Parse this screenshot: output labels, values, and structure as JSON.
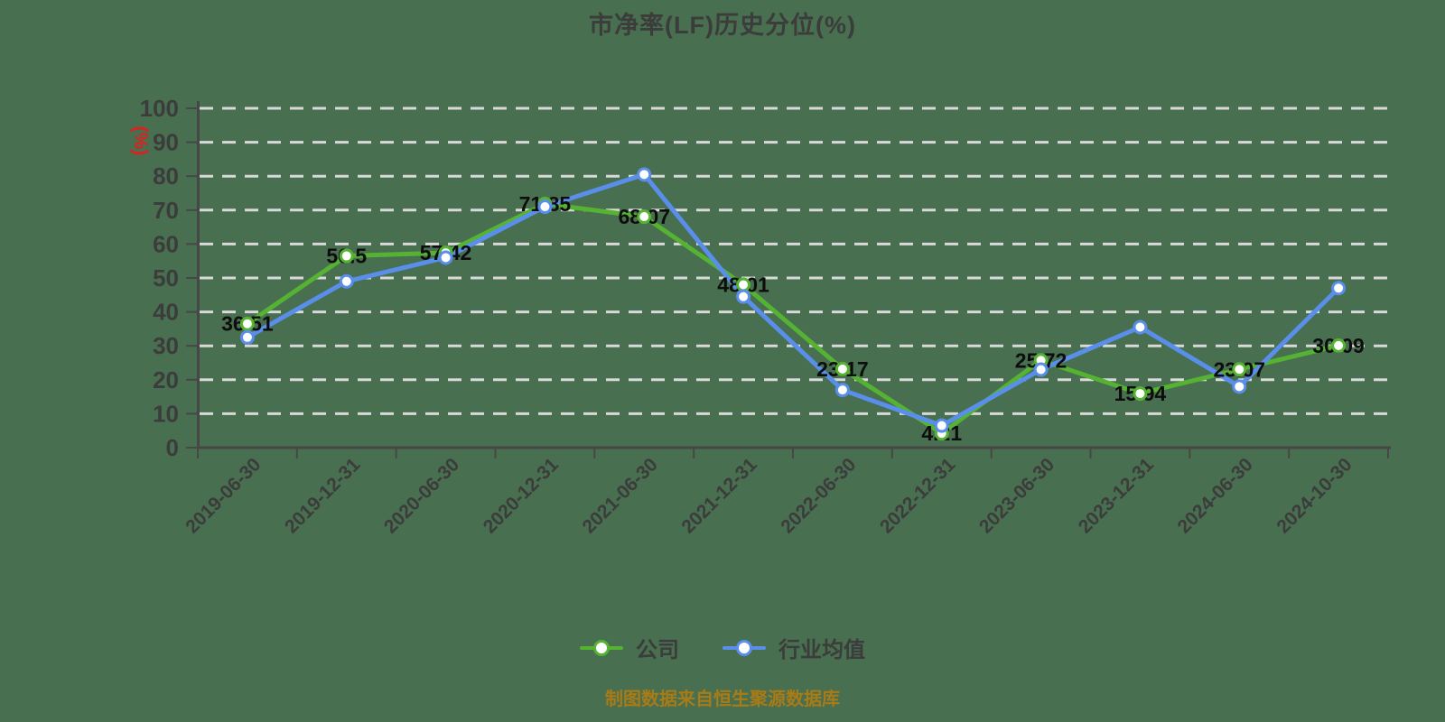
{
  "chart": {
    "title": "市净率(LF)历史分位(%)",
    "y_axis_name": "(%)",
    "source_note": "制图数据来自恒生聚源数据库"
  },
  "chart_data": {
    "type": "line",
    "title": "市净率(LF)历史分位(%)",
    "xlabel": "",
    "ylabel": "(%)",
    "ylim": [
      0,
      100
    ],
    "y_ticks": [
      0,
      10,
      20,
      30,
      40,
      50,
      60,
      70,
      80,
      90,
      100
    ],
    "grid": "horizontal dashed white lines",
    "legend_position": "bottom",
    "categories": [
      "2019-06-30",
      "2019-12-31",
      "2020-06-30",
      "2020-12-31",
      "2021-06-30",
      "2021-12-31",
      "2022-06-30",
      "2022-12-31",
      "2023-06-30",
      "2023-12-31",
      "2024-06-30",
      "2024-10-30"
    ],
    "series": [
      {
        "name": "公司",
        "color": "#55b232",
        "show_labels": true,
        "values": [
          36.51,
          56.5,
          57.42,
          71.85,
          68.07,
          48.01,
          23.17,
          4.21,
          25.72,
          15.94,
          23.07,
          30.09
        ]
      },
      {
        "name": "行业均值",
        "color": "#5a8eeb",
        "show_labels": false,
        "values": [
          32.5,
          49,
          56,
          71,
          80.5,
          44.5,
          17,
          6.5,
          23,
          35.5,
          18,
          47
        ]
      }
    ]
  },
  "colors": {
    "background": "#486f4f",
    "grid": "#d9d9d9",
    "axis": "#474747",
    "tick_label": "#3c3c3c",
    "data_label": "#0d0d0d",
    "y_axis_name": "#e01f1f",
    "source_note": "#a87b17",
    "legend_text": "#3c3c3c",
    "marker_fill": "#ffffff"
  }
}
